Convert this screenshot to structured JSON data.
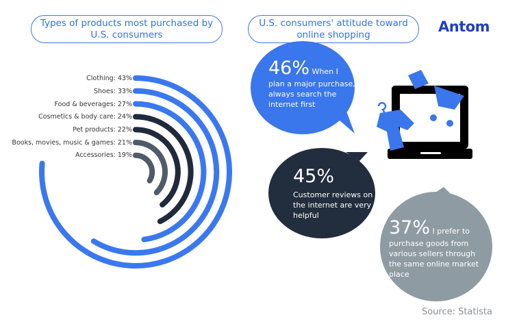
{
  "titles": {
    "left": "Types of products most purchased by U.S. consumers",
    "right": "U.S. consumers' attitude toward online shopping"
  },
  "logo": "Antom",
  "source": "Source: Statista",
  "colors": {
    "blue": "#3a78f0",
    "dark": "#1f2a3c",
    "gray": "#4f5a6a",
    "bubble_gray": "#8f9ba3"
  },
  "chart_data": {
    "type": "radial-bar",
    "title": "Types of products most purchased by U.S. consumers",
    "unit": "%",
    "categories": [
      "Clothing",
      "Shoes",
      "Food & beverages",
      "Cosmetics & body care",
      "Pet products",
      "Books, movies, music & games",
      "Accessories"
    ],
    "values": [
      43,
      33,
      27,
      24,
      22,
      21,
      19
    ],
    "labels": [
      "Clothing: 43%",
      "Shoes: 33%",
      "Food & beverages: 27%",
      "Cosmetics & body care: 24%",
      "Pet products: 22%",
      "Books, movies, music & games: 21%",
      "Accessories: 19%"
    ],
    "bar_colors": [
      "#3a78f0",
      "#3a78f0",
      "#3a78f0",
      "#1f2a3c",
      "#1f2a3c",
      "#4f5a6a",
      "#4f5a6a"
    ]
  },
  "bubbles": [
    {
      "pct": "46%",
      "lead": "When I",
      "text": "plan a major purchase, I always search the internet first"
    },
    {
      "pct": "45%",
      "lead": "",
      "text": "Customer reviews on the internet are very helpful"
    },
    {
      "pct": "37%",
      "lead": "I prefer to",
      "text": "purchase goods from various sellers through the same online market place"
    }
  ]
}
